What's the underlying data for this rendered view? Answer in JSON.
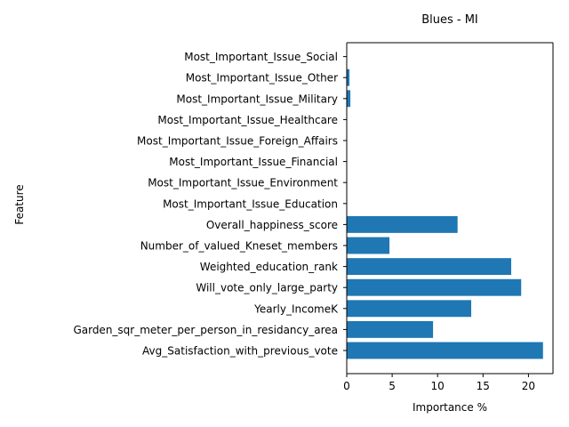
{
  "chart_data": {
    "type": "bar",
    "orientation": "horizontal",
    "title": "Blues - MI",
    "xlabel": "Importance %",
    "ylabel": "Feature",
    "xlim": [
      0,
      22.7
    ],
    "xticks": [
      0,
      5,
      10,
      15,
      20
    ],
    "grid": false,
    "color": "#1f77b4",
    "categories": [
      "Avg_Satisfaction_with_previous_vote",
      "Garden_sqr_meter_per_person_in_residancy_area",
      "Yearly_IncomeK",
      "Will_vote_only_large_party",
      "Weighted_education_rank",
      "Number_of_valued_Kneset_members",
      "Overall_happiness_score",
      "Most_Important_Issue_Education",
      "Most_Important_Issue_Environment",
      "Most_Important_Issue_Financial",
      "Most_Important_Issue_Foreign_Affairs",
      "Most_Important_Issue_Healthcare",
      "Most_Important_Issue_Military",
      "Most_Important_Issue_Other",
      "Most_Important_Issue_Social"
    ],
    "values": [
      21.6,
      9.5,
      13.7,
      19.2,
      18.1,
      4.7,
      12.2,
      0.0,
      0.0,
      0.0,
      0.0,
      0.0,
      0.4,
      0.3,
      0.0
    ]
  }
}
